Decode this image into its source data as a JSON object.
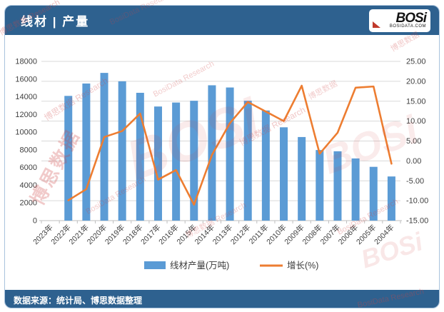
{
  "header": {
    "title": "线材 | 产量",
    "logo": {
      "text": "BOSi",
      "subtext": "BOSIDATA.COM"
    }
  },
  "footer": {
    "source": "数据来源：统计局、博思数据整理"
  },
  "watermark": {
    "cn": "博思数据",
    "en": "BosiData Research",
    "combo": "博思数据 Research",
    "logo": "BOSi"
  },
  "legend": [
    {
      "label": "线材产量(万吨)",
      "type": "bar",
      "color": "#5b9bd5"
    },
    {
      "label": "增长(%)",
      "type": "line",
      "color": "#ed7d31"
    }
  ],
  "chart_data": {
    "type": "bar+line",
    "title": "线材 | 产量",
    "categories": [
      "2023年",
      "2022年",
      "2021年",
      "2020年",
      "2019年",
      "2018年",
      "2017年",
      "2016年",
      "2015年",
      "2014年",
      "2013年",
      "2012年",
      "2011年",
      "2010年",
      "2009年",
      "2008年",
      "2007年",
      "2006年",
      "2005年",
      "2004年"
    ],
    "series": [
      {
        "name": "线材产量(万吨)",
        "type": "bar",
        "axis": "left",
        "color": "#5b9bd5",
        "values": [
          null,
          14100,
          15500,
          16700,
          15750,
          14450,
          12900,
          13350,
          13550,
          15300,
          15050,
          13550,
          12450,
          10550,
          9450,
          7980,
          7840,
          7030,
          6080,
          4990
        ]
      },
      {
        "name": "增长(%)",
        "type": "line",
        "axis": "right",
        "color": "#ed7d31",
        "values": [
          null,
          -9.9,
          -7.1,
          6.0,
          7.5,
          11.9,
          -4.7,
          -2.3,
          -11.0,
          1.5,
          9.5,
          14.8,
          12.4,
          10.0,
          18.9,
          1.8,
          7.1,
          18.4,
          18.7,
          -0.7
        ]
      }
    ],
    "left_axis": {
      "min": 0,
      "max": 18000,
      "step": 2000
    },
    "right_axis": {
      "min": -15,
      "max": 25,
      "step": 5
    },
    "grid": true,
    "legend_position": "bottom"
  }
}
